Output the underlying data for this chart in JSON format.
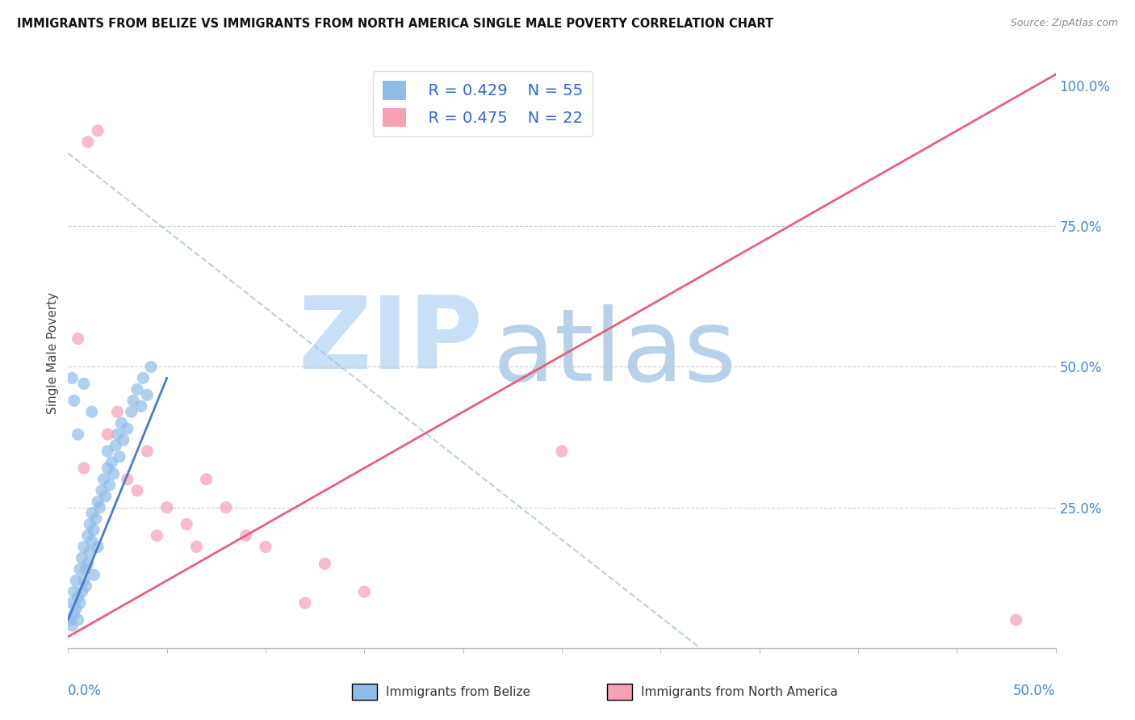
{
  "title": "IMMIGRANTS FROM BELIZE VS IMMIGRANTS FROM NORTH AMERICA SINGLE MALE POVERTY CORRELATION CHART",
  "source": "Source: ZipAtlas.com",
  "ylabel": "Single Male Poverty",
  "xlim": [
    0.0,
    0.5
  ],
  "ylim": [
    0.0,
    1.05
  ],
  "R_belize": 0.429,
  "N_belize": 55,
  "R_na": 0.475,
  "N_na": 22,
  "legend_label_belize": "Immigrants from Belize",
  "legend_label_na": "Immigrants from North America",
  "color_belize": "#90bce8",
  "color_na": "#f4a0b5",
  "color_belize_line": "#4a7cc7",
  "color_na_line": "#e8607a",
  "color_diag_line": "#aac4e0",
  "watermark_zip": "ZIP",
  "watermark_atlas": "atlas",
  "watermark_color_zip": "#c8dff5",
  "watermark_color_atlas": "#b8d0e8",
  "belize_x": [
    0.001,
    0.002,
    0.002,
    0.003,
    0.003,
    0.004,
    0.004,
    0.005,
    0.005,
    0.006,
    0.006,
    0.007,
    0.007,
    0.008,
    0.008,
    0.009,
    0.009,
    0.01,
    0.01,
    0.011,
    0.011,
    0.012,
    0.012,
    0.013,
    0.013,
    0.014,
    0.015,
    0.015,
    0.016,
    0.017,
    0.018,
    0.019,
    0.02,
    0.02,
    0.021,
    0.022,
    0.023,
    0.024,
    0.025,
    0.026,
    0.027,
    0.028,
    0.03,
    0.032,
    0.033,
    0.035,
    0.037,
    0.038,
    0.04,
    0.042,
    0.002,
    0.003,
    0.005,
    0.008,
    0.012
  ],
  "belize_y": [
    0.05,
    0.04,
    0.08,
    0.06,
    0.1,
    0.07,
    0.12,
    0.05,
    0.09,
    0.08,
    0.14,
    0.1,
    0.16,
    0.12,
    0.18,
    0.11,
    0.14,
    0.15,
    0.2,
    0.17,
    0.22,
    0.19,
    0.24,
    0.13,
    0.21,
    0.23,
    0.18,
    0.26,
    0.25,
    0.28,
    0.3,
    0.27,
    0.32,
    0.35,
    0.29,
    0.33,
    0.31,
    0.36,
    0.38,
    0.34,
    0.4,
    0.37,
    0.39,
    0.42,
    0.44,
    0.46,
    0.43,
    0.48,
    0.45,
    0.5,
    0.48,
    0.44,
    0.38,
    0.47,
    0.42
  ],
  "na_x": [
    0.01,
    0.015,
    0.02,
    0.025,
    0.03,
    0.035,
    0.04,
    0.045,
    0.05,
    0.06,
    0.065,
    0.07,
    0.08,
    0.09,
    0.1,
    0.12,
    0.13,
    0.15,
    0.005,
    0.008,
    0.48,
    0.25
  ],
  "na_y": [
    0.9,
    0.92,
    0.38,
    0.42,
    0.3,
    0.28,
    0.35,
    0.2,
    0.25,
    0.22,
    0.18,
    0.3,
    0.25,
    0.2,
    0.18,
    0.08,
    0.15,
    0.1,
    0.55,
    0.32,
    0.05,
    0.35
  ],
  "na_line_x0": 0.0,
  "na_line_y0": 0.02,
  "na_line_x1": 0.5,
  "na_line_y1": 1.02,
  "belize_line_x0": 0.0,
  "belize_line_y0": 0.05,
  "belize_line_x1": 0.05,
  "belize_line_y1": 0.48,
  "diag_line_x0": 0.0,
  "diag_line_y0": 0.88,
  "diag_line_x1": 0.32,
  "diag_line_y1": 0.0
}
